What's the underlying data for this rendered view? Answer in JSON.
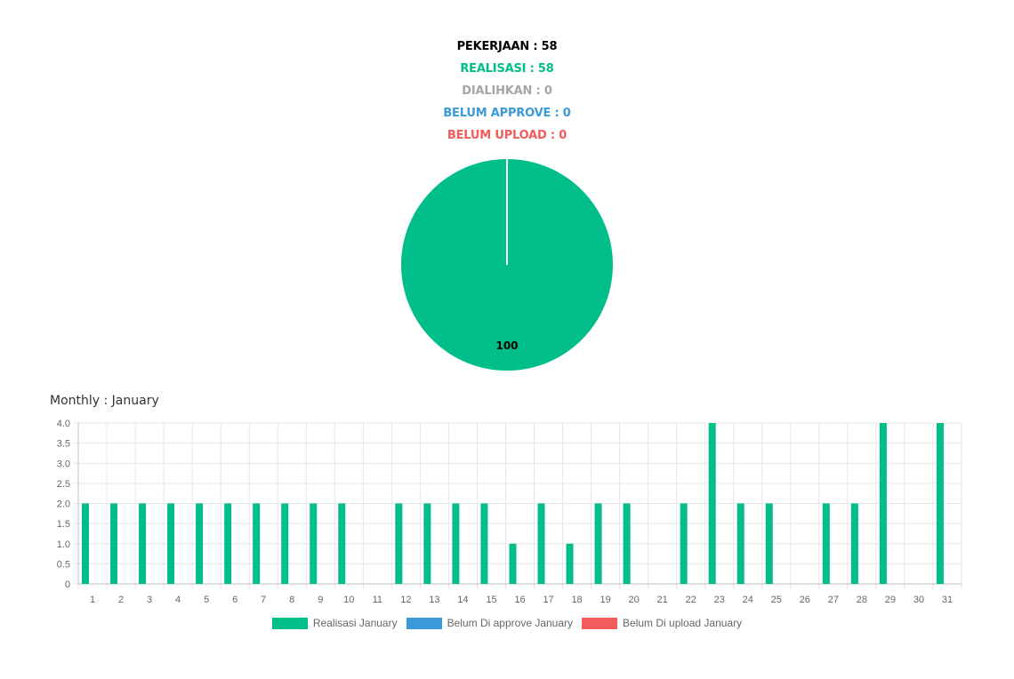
{
  "summary": {
    "pekerjaan": "PEKERJAAN : 58",
    "realisasi": "REALISASI : 58",
    "dialihkan": "DIALIHKAN : 0",
    "belum_approve": "BELUM APPROVE : 0",
    "belum_upload": "BELUM UPLOAD : 0"
  },
  "colors": {
    "pekerjaan": "#000000",
    "realisasi": "#00BE8A",
    "dialihkan": "#A6A6A6",
    "belum_approve": "#3A9AD9",
    "belum_upload": "#F45B5B",
    "grid": "#E6E6E6",
    "axis_text": "#666666"
  },
  "monthly": {
    "title": "Monthly : January"
  },
  "chart_data": [
    {
      "type": "pie",
      "slices": [
        {
          "label": "",
          "value": 100,
          "color": "#00BE8A",
          "data_label": "100"
        }
      ]
    },
    {
      "type": "bar",
      "categories": [
        "1",
        "2",
        "3",
        "4",
        "5",
        "6",
        "7",
        "8",
        "9",
        "10",
        "11",
        "12",
        "13",
        "14",
        "15",
        "16",
        "17",
        "18",
        "19",
        "20",
        "21",
        "22",
        "23",
        "24",
        "25",
        "26",
        "27",
        "28",
        "29",
        "30",
        "31"
      ],
      "series": [
        {
          "name": "Realisasi January",
          "color": "#00BE8A",
          "values": [
            2,
            2,
            2,
            2,
            2,
            2,
            2,
            2,
            2,
            2,
            0,
            2,
            2,
            2,
            2,
            1,
            2,
            1,
            2,
            2,
            0,
            2,
            4,
            2,
            2,
            0,
            2,
            2,
            4,
            0,
            4
          ]
        },
        {
          "name": "Belum Di approve January",
          "color": "#3A9AD9",
          "values": [
            0,
            0,
            0,
            0,
            0,
            0,
            0,
            0,
            0,
            0,
            0,
            0,
            0,
            0,
            0,
            0,
            0,
            0,
            0,
            0,
            0,
            0,
            0,
            0,
            0,
            0,
            0,
            0,
            0,
            0,
            0
          ]
        },
        {
          "name": "Belum Di upload January",
          "color": "#F45B5B",
          "values": [
            0,
            0,
            0,
            0,
            0,
            0,
            0,
            0,
            0,
            0,
            0,
            0,
            0,
            0,
            0,
            0,
            0,
            0,
            0,
            0,
            0,
            0,
            0,
            0,
            0,
            0,
            0,
            0,
            0,
            0,
            0
          ]
        }
      ],
      "yticks": [
        "0",
        "0.5",
        "1.0",
        "1.5",
        "2.0",
        "2.5",
        "3.0",
        "3.5",
        "4.0"
      ],
      "ylim": [
        0,
        4
      ],
      "grid": true,
      "legend": "bottom"
    }
  ]
}
